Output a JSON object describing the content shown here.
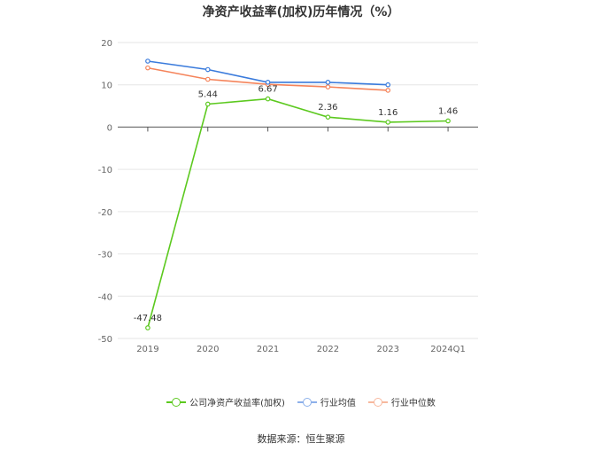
{
  "chart_data": {
    "type": "line",
    "title": "净资产收益率(加权)历年情况（%）",
    "categories": [
      "2019",
      "2020",
      "2021",
      "2022",
      "2023",
      "2024Q1"
    ],
    "ylim": [
      -50,
      20
    ],
    "yticks": [
      20,
      10,
      0,
      -10,
      -20,
      -30,
      -40,
      -50
    ],
    "grid": true,
    "legend_position": "bottom",
    "series": [
      {
        "name": "公司净资产收益率(加权)",
        "color": "#5cc91f",
        "values": [
          -47.48,
          5.44,
          6.67,
          2.36,
          1.16,
          1.46
        ],
        "labels": [
          "-47.48",
          "5.44",
          "6.67",
          "2.36",
          "1.16",
          "1.46"
        ]
      },
      {
        "name": "行业均值",
        "color": "#3a7bdc",
        "values": [
          15.6,
          13.6,
          10.6,
          10.6,
          10.0,
          null
        ]
      },
      {
        "name": "行业中位数",
        "color": "#f5845b",
        "values": [
          14.0,
          11.3,
          10.1,
          9.5,
          8.7,
          null
        ]
      }
    ]
  },
  "legend_colors": {
    "company": "#5cc91f",
    "mean": "#8cb0ea",
    "median": "#f7b89e"
  },
  "source": "数据来源：恒生聚源"
}
